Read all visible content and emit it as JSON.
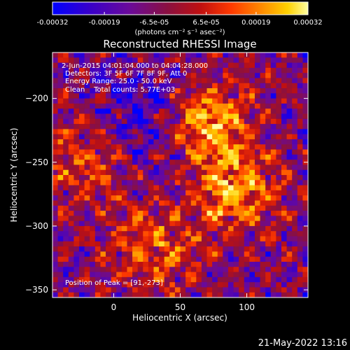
{
  "colorbar": {
    "tick_labels": [
      "-0.00032",
      "-0.00019",
      "-6.5e-05",
      "6.5e-05",
      "0.00019",
      "0.00032"
    ],
    "tick_values": [
      -0.00032,
      -0.00019,
      -6.5e-05,
      6.5e-05,
      0.00019,
      0.00032
    ],
    "unit_label": "(photons cm⁻² s⁻¹ asec⁻²)",
    "range": [
      -0.00032,
      0.00032
    ],
    "colors": [
      "#0000ff",
      "#3a00c8",
      "#6a0a9a",
      "#8a1040",
      "#c01010",
      "#ff3a00",
      "#ff8c00",
      "#ffd000",
      "#ffffa0"
    ]
  },
  "info_lines": [
    "2-Jun-2015 04:01:04.000 to 04:04:28.000",
    "Detectors: 3F 5F 6F 7F 8F 9F, Att 0",
    "Energy Range: 25.0 - 50.0 keV",
    "Clean    Total counts: 5.77E+03"
  ],
  "peak_label": "Position of Peak = [91,-273]",
  "footer_date": "21-May-2022 13:16",
  "chart_data": {
    "type": "heatmap",
    "title": "Reconstructed RHESSI Image",
    "xlabel": "Heliocentric X (arcsec)",
    "ylabel": "Heliocentric Y (arcsec)",
    "xlim": [
      -46,
      146
    ],
    "ylim": [
      -356,
      -164
    ],
    "xticks": [
      0,
      50,
      100
    ],
    "yticks": [
      -200,
      -250,
      -300,
      -350
    ],
    "peak_position": [
      91,
      -273
    ],
    "grid": false,
    "colormap": "blue-purple-red-yellow-white",
    "features": [
      {
        "description": "bright source",
        "center": [
          72,
          -220
        ]
      },
      {
        "description": "bright source",
        "center": [
          91,
          -273
        ]
      },
      {
        "description": "bright source",
        "center": [
          -20,
          -250
        ]
      },
      {
        "description": "bright source",
        "center": [
          30,
          -320
        ]
      }
    ]
  }
}
